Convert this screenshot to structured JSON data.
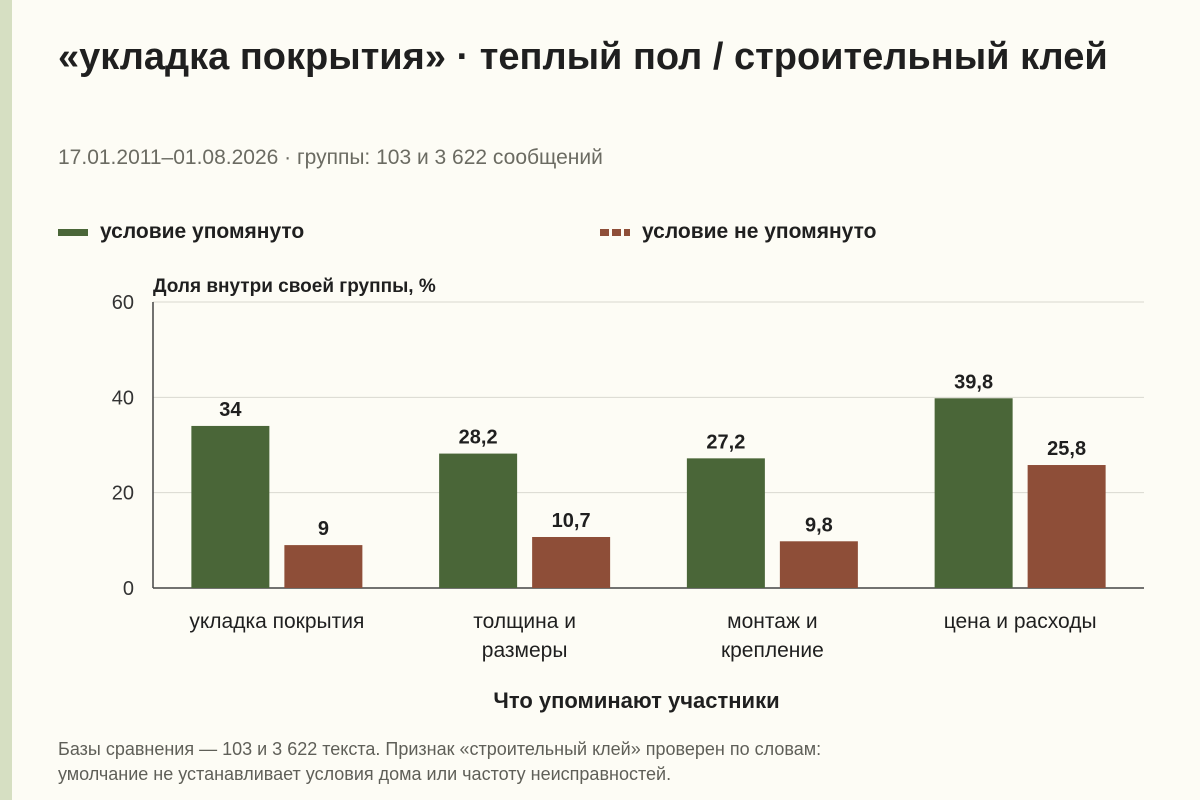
{
  "header": {
    "title": "«укладка покрытия» · теплый пол / строительный клей",
    "subtitle": "17.01.2011–01.08.2026 · группы: 103 и 3 622 сообщений"
  },
  "legend": {
    "mentioned": "условие упомянуто",
    "not_mentioned": "условие не упомянуто"
  },
  "footnote": {
    "line1": "Базы сравнения — 103 и 3 622 текста. Признак «строительный клей» проверен по словам:",
    "line2": "умолчание не устанавливает условия дома или частоту неисправностей."
  },
  "colors": {
    "mentioned": "#4a6638",
    "not_mentioned": "#8e4e38",
    "grid": "#d9d9d0",
    "axis": "#444444",
    "background": "#fdfcf5"
  },
  "chart_data": {
    "type": "bar",
    "ylabel": "Доля внутри своей группы, %",
    "xlabel": "Что упоминают участники",
    "ylim": [
      0,
      60
    ],
    "yticks": [
      0,
      20,
      40,
      60
    ],
    "grid": true,
    "legend_position": "top",
    "categories": [
      [
        "укладка покрытия"
      ],
      [
        "толщина и",
        "размеры"
      ],
      [
        "монтаж и",
        "крепление"
      ],
      [
        "цена и расходы"
      ]
    ],
    "series": [
      {
        "name": "условие упомянуто",
        "values": [
          34,
          28.2,
          27.2,
          39.8
        ],
        "labels": [
          "34",
          "28,2",
          "27,2",
          "39,8"
        ]
      },
      {
        "name": "условие не упомянуто",
        "values": [
          9,
          10.7,
          9.8,
          25.8
        ],
        "labels": [
          "9",
          "10,7",
          "9,8",
          "25,8"
        ]
      }
    ]
  }
}
